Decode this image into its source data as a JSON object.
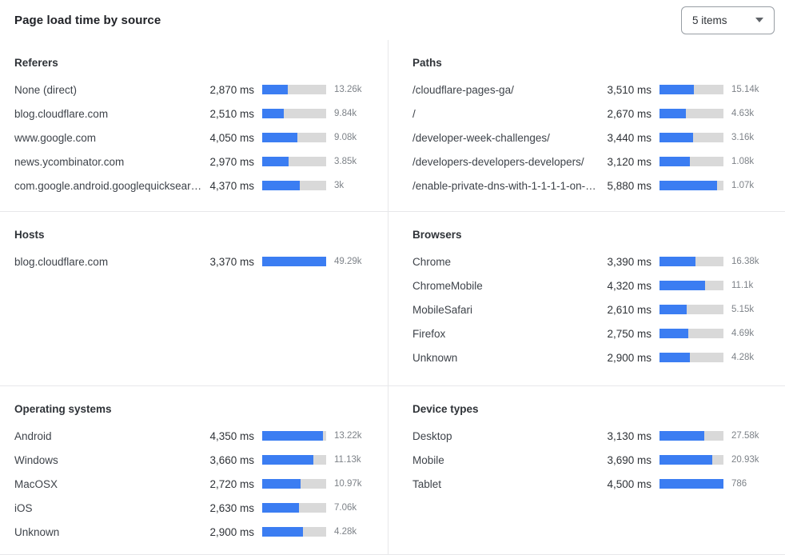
{
  "header": {
    "title": "Page load time by source",
    "dropdown_value": "5 items"
  },
  "colors": {
    "accent_blue": "#3b7df2",
    "bar_track": "#d9d9d9",
    "divider": "#e7e8ea",
    "heading_text": "#2f3338",
    "label_text": "#3e434a",
    "count_text": "#7d8288"
  },
  "chart_data": [
    {
      "type": "bar",
      "title": "Referers",
      "value_unit": "ms",
      "rows": [
        {
          "label": "None (direct)",
          "time_ms": 2870,
          "time_label": "2,870 ms",
          "count_label": "13.26k",
          "bar_pct": 40
        },
        {
          "label": "blog.cloudflare.com",
          "time_ms": 2510,
          "time_label": "2,510 ms",
          "count_label": "9.84k",
          "bar_pct": 34
        },
        {
          "label": "www.google.com",
          "time_ms": 4050,
          "time_label": "4,050 ms",
          "count_label": "9.08k",
          "bar_pct": 55
        },
        {
          "label": "news.ycombinator.com",
          "time_ms": 2970,
          "time_label": "2,970 ms",
          "count_label": "3.85k",
          "bar_pct": 41
        },
        {
          "label": "com.google.android.googlequicksearc…",
          "time_ms": 4370,
          "time_label": "4,370 ms",
          "count_label": "3k",
          "bar_pct": 59
        }
      ]
    },
    {
      "type": "bar",
      "title": "Paths",
      "value_unit": "ms",
      "rows": [
        {
          "label": "/cloudflare-pages-ga/",
          "time_ms": 3510,
          "time_label": "3,510 ms",
          "count_label": "15.14k",
          "bar_pct": 54
        },
        {
          "label": "/",
          "time_ms": 2670,
          "time_label": "2,670 ms",
          "count_label": "4.63k",
          "bar_pct": 41
        },
        {
          "label": "/developer-week-challenges/",
          "time_ms": 3440,
          "time_label": "3,440 ms",
          "count_label": "3.16k",
          "bar_pct": 53
        },
        {
          "label": "/developers-developers-developers/",
          "time_ms": 3120,
          "time_label": "3,120 ms",
          "count_label": "1.08k",
          "bar_pct": 48
        },
        {
          "label": "/enable-private-dns-with-1-1-1-1-on-…",
          "time_ms": 5880,
          "time_label": "5,880 ms",
          "count_label": "1.07k",
          "bar_pct": 90
        }
      ]
    },
    {
      "type": "bar",
      "title": "Hosts",
      "value_unit": "ms",
      "rows": [
        {
          "label": "blog.cloudflare.com",
          "time_ms": 3370,
          "time_label": "3,370 ms",
          "count_label": "49.29k",
          "bar_pct": 100
        }
      ]
    },
    {
      "type": "bar",
      "title": "Browsers",
      "value_unit": "ms",
      "rows": [
        {
          "label": "Chrome",
          "time_ms": 3390,
          "time_label": "3,390 ms",
          "count_label": "16.38k",
          "bar_pct": 56
        },
        {
          "label": "ChromeMobile",
          "time_ms": 4320,
          "time_label": "4,320 ms",
          "count_label": "11.1k",
          "bar_pct": 71
        },
        {
          "label": "MobileSafari",
          "time_ms": 2610,
          "time_label": "2,610 ms",
          "count_label": "5.15k",
          "bar_pct": 43
        },
        {
          "label": "Firefox",
          "time_ms": 2750,
          "time_label": "2,750 ms",
          "count_label": "4.69k",
          "bar_pct": 45
        },
        {
          "label": "Unknown",
          "time_ms": 2900,
          "time_label": "2,900 ms",
          "count_label": "4.28k",
          "bar_pct": 47
        }
      ]
    },
    {
      "type": "bar",
      "title": "Operating systems",
      "value_unit": "ms",
      "rows": [
        {
          "label": "Android",
          "time_ms": 4350,
          "time_label": "4,350 ms",
          "count_label": "13.22k",
          "bar_pct": 95
        },
        {
          "label": "Windows",
          "time_ms": 3660,
          "time_label": "3,660 ms",
          "count_label": "11.13k",
          "bar_pct": 80
        },
        {
          "label": "MacOSX",
          "time_ms": 2720,
          "time_label": "2,720 ms",
          "count_label": "10.97k",
          "bar_pct": 60
        },
        {
          "label": "iOS",
          "time_ms": 2630,
          "time_label": "2,630 ms",
          "count_label": "7.06k",
          "bar_pct": 57
        },
        {
          "label": "Unknown",
          "time_ms": 2900,
          "time_label": "2,900 ms",
          "count_label": "4.28k",
          "bar_pct": 64
        }
      ]
    },
    {
      "type": "bar",
      "title": "Device types",
      "value_unit": "ms",
      "rows": [
        {
          "label": "Desktop",
          "time_ms": 3130,
          "time_label": "3,130 ms",
          "count_label": "27.58k",
          "bar_pct": 70
        },
        {
          "label": "Mobile",
          "time_ms": 3690,
          "time_label": "3,690 ms",
          "count_label": "20.93k",
          "bar_pct": 82
        },
        {
          "label": "Tablet",
          "time_ms": 4500,
          "time_label": "4,500 ms",
          "count_label": "786",
          "bar_pct": 100
        }
      ]
    }
  ]
}
